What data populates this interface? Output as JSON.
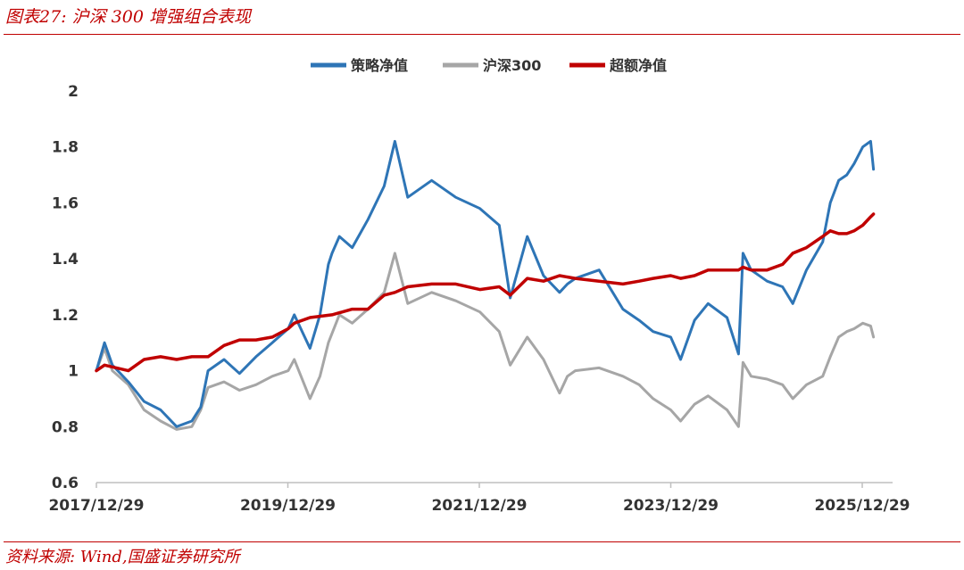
{
  "figure": {
    "title": "图表27:  沪深 300 增强组合表现",
    "source": "资料来源:  Wind,国盛证券研究所"
  },
  "chart_data": {
    "type": "line",
    "x_ticks": [
      "2017/12/29",
      "2019/12/29",
      "2021/12/29",
      "2023/12/29",
      "2025/12/29"
    ],
    "ylim": [
      0.6,
      2.0
    ],
    "y_ticks": [
      "0.6",
      "0.8",
      "1",
      "1.2",
      "1.4",
      "1.6",
      "1.8",
      "2"
    ],
    "legend_position": "top-center",
    "series": [
      {
        "name": "策略净值",
        "color": "#2e75b6",
        "x": [
          "2017-12-29",
          "2018-01-29",
          "2018-02-28",
          "2018-04-30",
          "2018-06-29",
          "2018-08-31",
          "2018-10-31",
          "2018-12-28",
          "2019-01-31",
          "2019-02-28",
          "2019-04-30",
          "2019-06-28",
          "2019-08-30",
          "2019-10-31",
          "2019-12-31",
          "2020-01-23",
          "2020-03-23",
          "2020-04-30",
          "2020-06-01",
          "2020-06-15",
          "2020-07-13",
          "2020-08-31",
          "2020-10-30",
          "2020-12-31",
          "2021-02-10",
          "2021-03-31",
          "2021-06-30",
          "2021-09-30",
          "2021-12-31",
          "2022-03-15",
          "2022-04-26",
          "2022-06-30",
          "2022-08-31",
          "2022-10-31",
          "2022-11-30",
          "2022-12-30",
          "2023-03-31",
          "2023-06-30",
          "2023-08-31",
          "2023-10-23",
          "2023-12-29",
          "2024-02-05",
          "2024-03-29",
          "2024-05-20",
          "2024-07-31",
          "2024-09-13",
          "2024-09-30",
          "2024-10-31",
          "2024-12-31",
          "2025-02-28",
          "2025-04-08",
          "2025-05-30",
          "2025-07-31",
          "2025-08-29",
          "2025-09-30",
          "2025-10-31",
          "2025-11-28",
          "2025-12-31",
          "2026-01-30",
          "2026-02-10"
        ],
        "y": [
          1.0,
          1.1,
          1.02,
          0.96,
          0.89,
          0.86,
          0.8,
          0.82,
          0.87,
          1.0,
          1.04,
          0.99,
          1.05,
          1.1,
          1.15,
          1.2,
          1.08,
          1.2,
          1.38,
          1.42,
          1.48,
          1.44,
          1.54,
          1.66,
          1.82,
          1.62,
          1.68,
          1.62,
          1.58,
          1.52,
          1.26,
          1.48,
          1.34,
          1.28,
          1.31,
          1.33,
          1.36,
          1.22,
          1.18,
          1.14,
          1.12,
          1.04,
          1.18,
          1.24,
          1.19,
          1.06,
          1.42,
          1.36,
          1.32,
          1.3,
          1.24,
          1.36,
          1.46,
          1.6,
          1.68,
          1.7,
          1.74,
          1.8,
          1.82,
          1.72
        ]
      },
      {
        "name": "沪深300",
        "color": "#a6a6a6",
        "x": [
          "2017-12-29",
          "2018-01-29",
          "2018-02-28",
          "2018-04-30",
          "2018-06-29",
          "2018-08-31",
          "2018-10-31",
          "2018-12-28",
          "2019-01-31",
          "2019-02-28",
          "2019-04-30",
          "2019-06-28",
          "2019-08-30",
          "2019-10-31",
          "2019-12-31",
          "2020-01-23",
          "2020-03-23",
          "2020-04-30",
          "2020-06-01",
          "2020-07-13",
          "2020-08-31",
          "2020-10-30",
          "2020-12-31",
          "2021-02-10",
          "2021-03-31",
          "2021-06-30",
          "2021-09-30",
          "2021-12-31",
          "2022-03-15",
          "2022-04-26",
          "2022-06-30",
          "2022-08-31",
          "2022-10-31",
          "2022-11-30",
          "2022-12-30",
          "2023-03-31",
          "2023-06-30",
          "2023-08-31",
          "2023-10-23",
          "2023-12-29",
          "2024-02-05",
          "2024-03-29",
          "2024-05-20",
          "2024-07-31",
          "2024-09-13",
          "2024-09-30",
          "2024-10-31",
          "2024-12-31",
          "2025-02-28",
          "2025-04-08",
          "2025-05-30",
          "2025-07-31",
          "2025-08-29",
          "2025-09-30",
          "2025-10-31",
          "2025-11-28",
          "2025-12-31",
          "2026-01-30",
          "2026-02-10"
        ],
        "y": [
          1.0,
          1.08,
          1.0,
          0.95,
          0.86,
          0.82,
          0.79,
          0.8,
          0.86,
          0.94,
          0.96,
          0.93,
          0.95,
          0.98,
          1.0,
          1.04,
          0.9,
          0.98,
          1.1,
          1.2,
          1.17,
          1.22,
          1.28,
          1.42,
          1.24,
          1.28,
          1.25,
          1.21,
          1.14,
          1.02,
          1.12,
          1.04,
          0.92,
          0.98,
          1.0,
          1.01,
          0.98,
          0.95,
          0.9,
          0.86,
          0.82,
          0.88,
          0.91,
          0.86,
          0.8,
          1.03,
          0.98,
          0.97,
          0.95,
          0.9,
          0.95,
          0.98,
          1.05,
          1.12,
          1.14,
          1.15,
          1.17,
          1.16,
          1.12
        ]
      },
      {
        "name": "超额净值",
        "color": "#c00000",
        "x": [
          "2017-12-29",
          "2018-01-29",
          "2018-04-30",
          "2018-06-29",
          "2018-08-31",
          "2018-10-31",
          "2018-12-28",
          "2019-02-28",
          "2019-04-30",
          "2019-06-28",
          "2019-08-30",
          "2019-10-31",
          "2019-12-31",
          "2020-01-23",
          "2020-03-23",
          "2020-06-15",
          "2020-08-31",
          "2020-10-30",
          "2020-12-31",
          "2021-02-10",
          "2021-03-31",
          "2021-06-30",
          "2021-09-30",
          "2021-12-31",
          "2022-03-15",
          "2022-04-26",
          "2022-06-30",
          "2022-08-31",
          "2022-10-31",
          "2022-12-30",
          "2023-03-31",
          "2023-06-30",
          "2023-08-31",
          "2023-10-23",
          "2023-12-29",
          "2024-02-05",
          "2024-03-29",
          "2024-05-20",
          "2024-07-31",
          "2024-09-13",
          "2024-09-30",
          "2024-10-31",
          "2024-12-31",
          "2025-02-28",
          "2025-04-08",
          "2025-05-30",
          "2025-07-31",
          "2025-08-29",
          "2025-09-30",
          "2025-10-31",
          "2025-11-28",
          "2025-12-31",
          "2026-01-30",
          "2026-02-10"
        ],
        "y": [
          1.0,
          1.02,
          1.0,
          1.04,
          1.05,
          1.04,
          1.05,
          1.05,
          1.09,
          1.11,
          1.11,
          1.12,
          1.15,
          1.17,
          1.19,
          1.2,
          1.22,
          1.22,
          1.27,
          1.28,
          1.3,
          1.31,
          1.31,
          1.29,
          1.3,
          1.27,
          1.33,
          1.32,
          1.34,
          1.33,
          1.32,
          1.31,
          1.32,
          1.33,
          1.34,
          1.33,
          1.34,
          1.36,
          1.36,
          1.36,
          1.37,
          1.36,
          1.36,
          1.38,
          1.42,
          1.44,
          1.48,
          1.5,
          1.49,
          1.49,
          1.5,
          1.52,
          1.55,
          1.56
        ]
      }
    ]
  }
}
